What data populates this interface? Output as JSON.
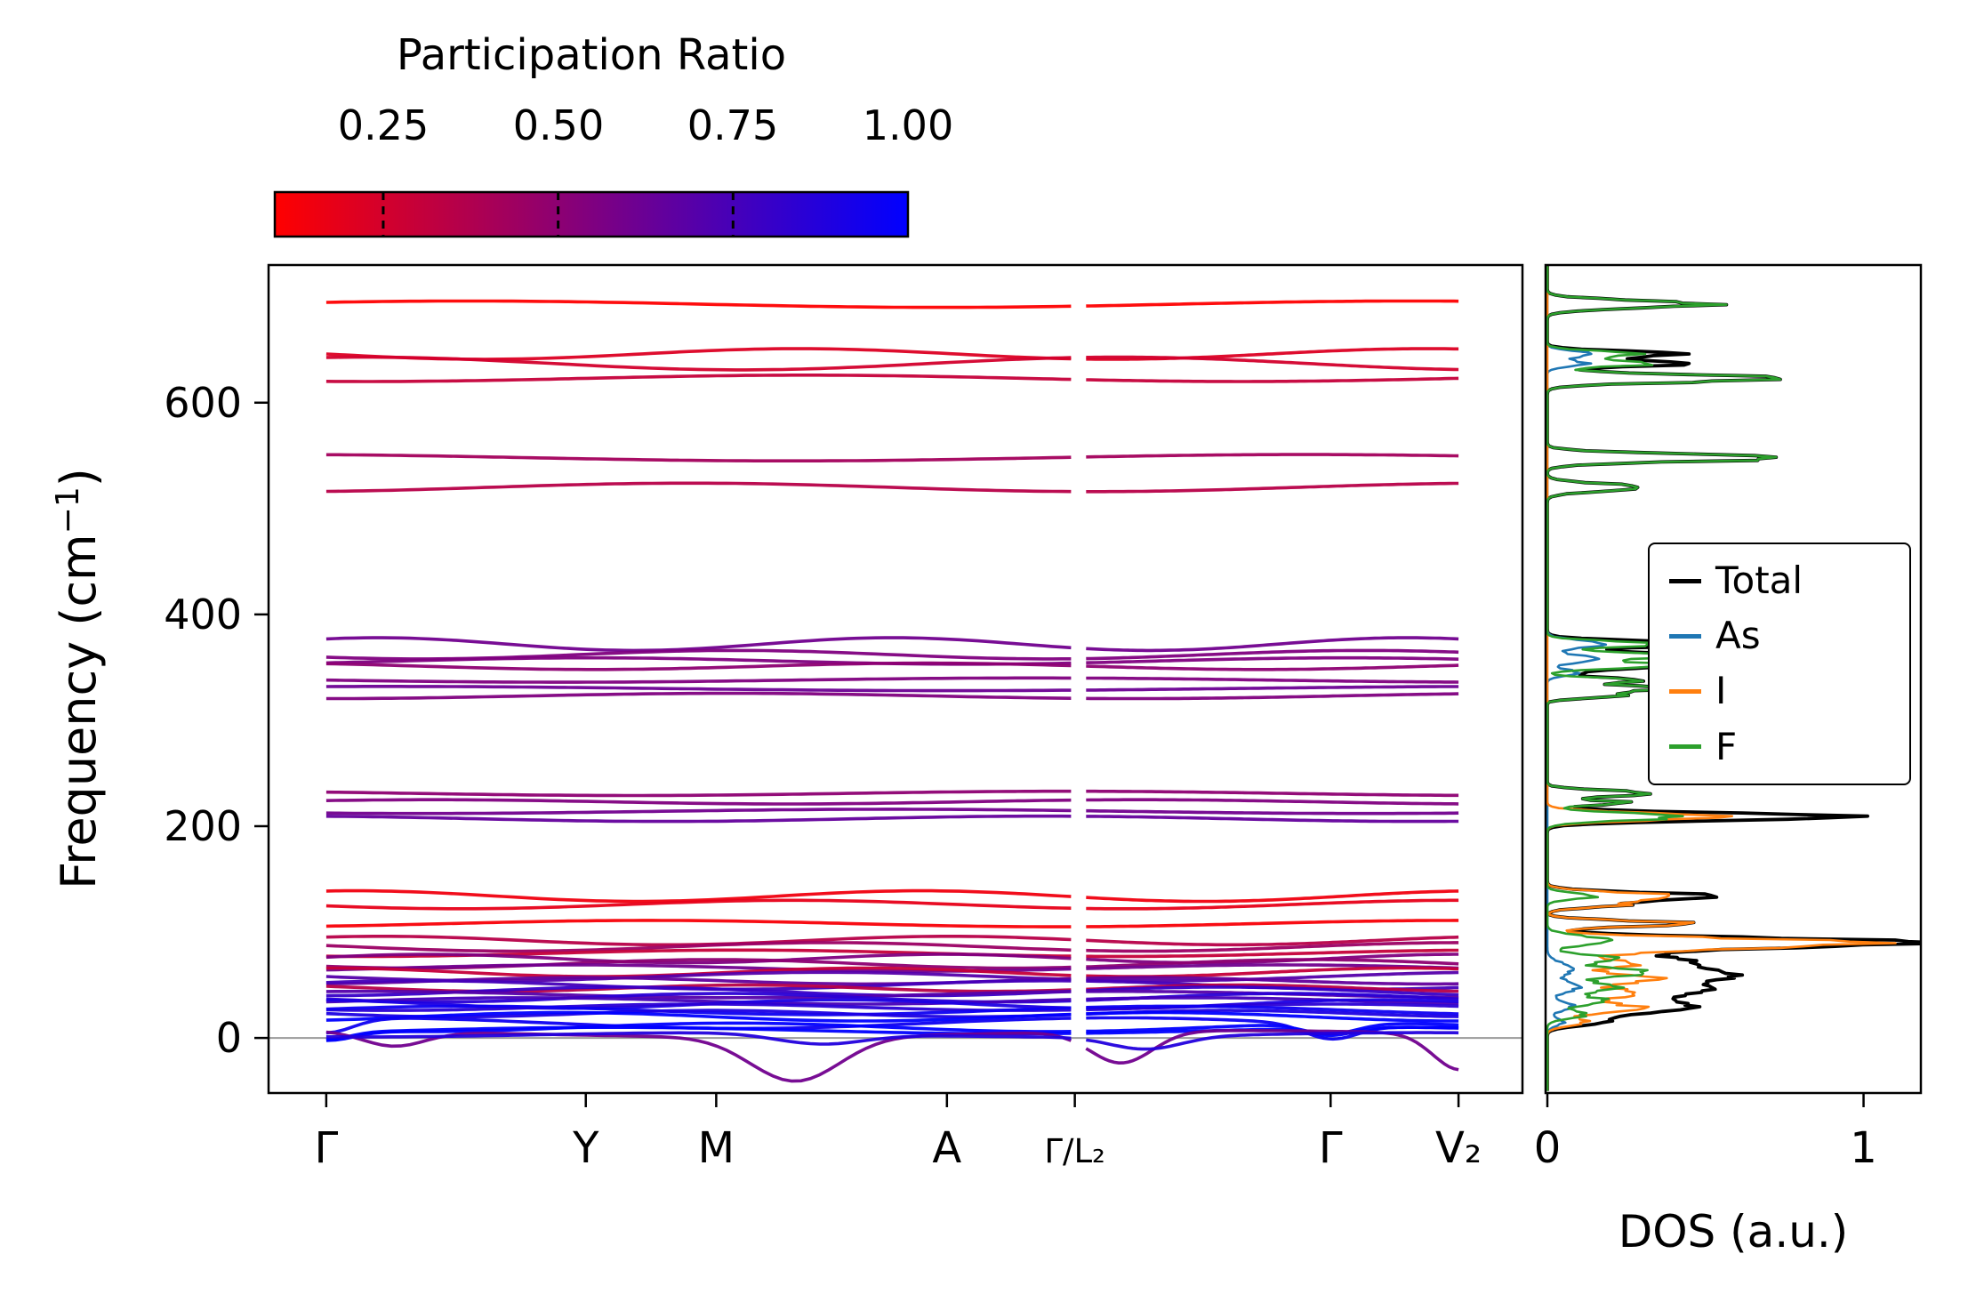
{
  "chart_data": {
    "type": "line",
    "description": "Phonon band structure colored by participation ratio, with projected phonon DOS side panel",
    "colorbar": {
      "title": "Participation Ratio",
      "ticks": [
        "0.25",
        "0.50",
        "0.75",
        "1.00"
      ],
      "tick_values": [
        0.25,
        0.5,
        0.75,
        1.0
      ],
      "vmin": 0.095,
      "vmax": 1.0,
      "color_low": "#ff0000",
      "color_high": "#0000ff"
    },
    "band_panel": {
      "ylabel_pre": "Frequency (cm",
      "ylabel_sup": "−1",
      "ylabel_post": ")",
      "yticks": [
        0,
        200,
        400,
        600
      ],
      "ylim": [
        -52,
        730
      ],
      "xtick_labels": [
        "Γ",
        "Y",
        "M",
        "A",
        "Γ/L₂",
        "Γ",
        "V₂"
      ],
      "xtick_positions": [
        0.046,
        0.253,
        0.357,
        0.541,
        0.643,
        0.847,
        0.949
      ],
      "xtick_scale": [
        1,
        1,
        1,
        1,
        0.78,
        1,
        1
      ],
      "segments": [
        [
          0.046,
          0.64
        ],
        [
          0.652,
          0.949
        ]
      ],
      "zero_line_color": "#9a9a9a",
      "bands": [
        {
          "f": 693,
          "pr": 0.1,
          "a": 3,
          "w": 1.2,
          "p": 0.1
        },
        {
          "f": 646,
          "pr": 0.22,
          "a": 5,
          "w": 1.8,
          "p": 0.5
        },
        {
          "f": 637,
          "pr": 0.25,
          "a": 6,
          "w": 1.5,
          "p": 0.2
        },
        {
          "f": 623,
          "pr": 0.3,
          "a": 3,
          "w": 1.3,
          "p": 0.7
        },
        {
          "f": 548,
          "pr": 0.42,
          "a": 3,
          "w": 1.1,
          "p": 0.3
        },
        {
          "f": 520,
          "pr": 0.35,
          "a": 4,
          "w": 1.4,
          "p": 0.8
        },
        {
          "f": 372,
          "pr": 0.6,
          "a": 6,
          "w": 2.2,
          "p": 0.15
        },
        {
          "f": 362,
          "pr": 0.55,
          "a": 4,
          "w": 1.8,
          "p": 0.6
        },
        {
          "f": 356,
          "pr": 0.55,
          "a": 3,
          "w": 1.5,
          "p": 0.9
        },
        {
          "f": 351,
          "pr": 0.5,
          "a": 3,
          "w": 1.7,
          "p": 0.35
        },
        {
          "f": 338,
          "pr": 0.55,
          "a": 2,
          "w": 1.2,
          "p": 0.5
        },
        {
          "f": 330,
          "pr": 0.62,
          "a": 2,
          "w": 1.0,
          "p": 0.2
        },
        {
          "f": 323,
          "pr": 0.55,
          "a": 2.5,
          "w": 1.4,
          "p": 0.75
        },
        {
          "f": 231,
          "pr": 0.5,
          "a": 2,
          "w": 1.3,
          "p": 0.4
        },
        {
          "f": 223,
          "pr": 0.55,
          "a": 2,
          "w": 1.6,
          "p": 0.1
        },
        {
          "f": 214,
          "pr": 0.6,
          "a": 2,
          "w": 1.2,
          "p": 0.65
        },
        {
          "f": 207,
          "pr": 0.65,
          "a": 2.5,
          "w": 1.5,
          "p": 0.3
        },
        {
          "f": 134,
          "pr": 0.15,
          "a": 5,
          "w": 2.0,
          "p": 0.2
        },
        {
          "f": 126,
          "pr": 0.18,
          "a": 4,
          "w": 1.7,
          "p": 0.55
        },
        {
          "f": 108,
          "pr": 0.12,
          "a": 3,
          "w": 1.4,
          "p": 0.85
        },
        {
          "f": 92,
          "pr": 0.35,
          "a": 4,
          "w": 2.0,
          "p": 0.15
        },
        {
          "f": 86,
          "pr": 0.45,
          "a": 4,
          "w": 1.8,
          "p": 0.45
        },
        {
          "f": 80,
          "pr": 0.3,
          "a": 3,
          "w": 1.5,
          "p": 0.7
        },
        {
          "f": 75,
          "pr": 0.55,
          "a": 4,
          "w": 2.2,
          "p": 0.05
        },
        {
          "f": 70,
          "pr": 0.5,
          "a": 4,
          "w": 1.9,
          "p": 0.6
        },
        {
          "f": 66,
          "pr": 0.6,
          "a": 3,
          "w": 1.6,
          "p": 0.9
        },
        {
          "f": 62,
          "pr": 0.3,
          "a": 4,
          "w": 2.1,
          "p": 0.25
        },
        {
          "f": 58,
          "pr": 0.7,
          "a": 4,
          "w": 1.7,
          "p": 0.5
        },
        {
          "f": 54,
          "pr": 0.65,
          "a": 3,
          "w": 2.0,
          "p": 0.8
        },
        {
          "f": 50,
          "pr": 0.75,
          "a": 4,
          "w": 1.8,
          "p": 0.1
        },
        {
          "f": 47,
          "pr": 0.35,
          "a": 3,
          "w": 2.3,
          "p": 0.4
        },
        {
          "f": 44,
          "pr": 0.8,
          "a": 4,
          "w": 1.9,
          "p": 0.75
        },
        {
          "f": 41,
          "pr": 0.7,
          "a": 3,
          "w": 1.5,
          "p": 0.2
        },
        {
          "f": 38,
          "pr": 0.85,
          "a": 4,
          "w": 2.0,
          "p": 0.55
        },
        {
          "f": 35,
          "pr": 0.75,
          "a": 3,
          "w": 1.7,
          "p": 0.95
        },
        {
          "f": 32,
          "pr": 0.9,
          "a": 4,
          "w": 2.1,
          "p": 0.3
        },
        {
          "f": 29,
          "pr": 0.85,
          "a": 3,
          "w": 1.8,
          "p": 0.65
        },
        {
          "f": 26,
          "pr": 0.95,
          "a": 4,
          "w": 1.6,
          "p": 0.05
        },
        {
          "f": 23,
          "pr": 0.9,
          "a": 3,
          "w": 2.2,
          "p": 0.5
        },
        {
          "f": 20,
          "pr": 1.0,
          "a": 4,
          "w": 1.9,
          "p": 0.85
        },
        {
          "f": 14,
          "pr": 0.95,
          "a": 5,
          "w": 1.5,
          "p": 0.2,
          "dips": [
            {
              "c": 0.046,
              "d": 14,
              "s": 0.03
            },
            {
              "c": 0.847,
              "d": 14,
              "s": 0.03
            }
          ]
        },
        {
          "f": 10,
          "pr": 1.0,
          "a": 4,
          "w": 1.8,
          "p": 0.6,
          "dips": [
            {
              "c": 0.046,
              "d": 10,
              "s": 0.03
            },
            {
              "c": 0.847,
              "d": 10,
              "s": 0.03
            }
          ]
        },
        {
          "f": 7,
          "pr": 1.0,
          "a": 3,
          "w": 1.4,
          "p": 0.9,
          "dips": [
            {
              "c": 0.046,
              "d": 7,
              "s": 0.025
            },
            {
              "c": 0.847,
              "d": 7,
              "s": 0.025
            }
          ]
        },
        {
          "f": 4,
          "pr": 0.6,
          "a": 3,
          "w": 1.2,
          "p": 0.3,
          "dips": [
            {
              "c": 0.1,
              "d": 14,
              "s": 0.035
            },
            {
              "c": 0.42,
              "d": 42,
              "s": 0.05
            },
            {
              "c": 0.68,
              "d": 30,
              "s": 0.035
            },
            {
              "c": 0.95,
              "d": 34,
              "s": 0.03
            }
          ]
        },
        {
          "f": 3,
          "pr": 0.88,
          "a": 2,
          "w": 1.6,
          "p": 0.7,
          "dips": [
            {
              "c": 0.44,
              "d": 10,
              "s": 0.05
            },
            {
              "c": 0.7,
              "d": 12,
              "s": 0.04
            }
          ]
        }
      ]
    },
    "dos_panel": {
      "xlabel": "DOS (a.u.)",
      "xticks": [
        0,
        1
      ],
      "xtick_labels": [
        "0",
        "1"
      ],
      "xlim": [
        0,
        1.17
      ],
      "legend": [
        {
          "label": "Total",
          "color": "#000000"
        },
        {
          "label": "As",
          "color": "#1f77b4"
        },
        {
          "label": "I",
          "color": "#ff7f0e"
        },
        {
          "label": "F",
          "color": "#2ca02c"
        }
      ],
      "total": {
        "name": "Total",
        "color": "#000000",
        "compose": "sum"
      },
      "series": [
        {
          "name": "As",
          "color": "#1f77b4",
          "peaks": [
            [
              646,
              0.14,
              4
            ],
            [
              637,
              0.12,
              4
            ],
            [
              372,
              0.18,
              5
            ],
            [
              358,
              0.16,
              5
            ],
            [
              345,
              0.1,
              4
            ],
            [
              65,
              0.08,
              8
            ],
            [
              48,
              0.1,
              7
            ],
            [
              30,
              0.08,
              6
            ],
            [
              15,
              0.05,
              5
            ]
          ]
        },
        {
          "name": "I",
          "color": "#ff7f0e",
          "peaks": [
            [
              209,
              0.55,
              5
            ],
            [
              134,
              0.4,
              5
            ],
            [
              126,
              0.22,
              4
            ],
            [
              108,
              0.45,
              4
            ],
            [
              90,
              1.0,
              6
            ],
            [
              82,
              0.25,
              5
            ],
            [
              70,
              0.28,
              6
            ],
            [
              56,
              0.35,
              6
            ],
            [
              42,
              0.28,
              7
            ],
            [
              28,
              0.3,
              6
            ],
            [
              15,
              0.12,
              5
            ]
          ]
        },
        {
          "name": "F",
          "color": "#2ca02c",
          "peaks": [
            [
              693,
              0.5,
              5
            ],
            [
              646,
              0.28,
              4
            ],
            [
              637,
              0.33,
              4
            ],
            [
              623,
              0.75,
              5
            ],
            [
              548,
              0.75,
              5
            ],
            [
              520,
              0.3,
              5
            ],
            [
              372,
              0.35,
              4
            ],
            [
              361,
              0.42,
              4
            ],
            [
              352,
              0.4,
              4
            ],
            [
              338,
              0.3,
              3
            ],
            [
              330,
              0.4,
              4
            ],
            [
              323,
              0.22,
              3
            ],
            [
              231,
              0.33,
              4
            ],
            [
              222,
              0.25,
              3
            ],
            [
              209,
              0.42,
              5
            ],
            [
              134,
              0.15,
              4
            ],
            [
              92,
              0.2,
              6
            ],
            [
              75,
              0.22,
              5
            ],
            [
              62,
              0.32,
              6
            ],
            [
              48,
              0.22,
              6
            ],
            [
              35,
              0.18,
              6
            ],
            [
              22,
              0.12,
              5
            ]
          ]
        }
      ]
    }
  }
}
